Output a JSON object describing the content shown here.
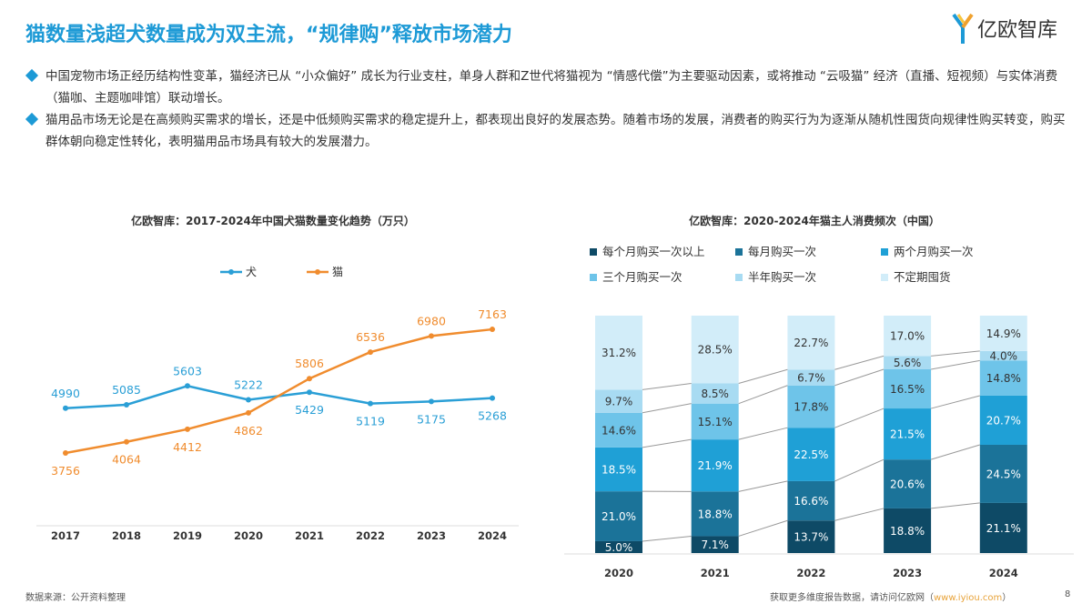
{
  "title": "猫数量浅超犬数量成为双主流，“规律购”释放市场潜力",
  "logo_text": "亿欧智库",
  "bullets": [
    "中国宠物市场正经历结构性变革，猫经济已从 “小众偏好” 成长为行业支柱，单身人群和Z世代将猫视为 “情感代偿”为主要驱动因素，或将推动 “云吸猫” 经济（直播、短视频）与实体消费（猫咖、主题咖啡馆）联动增长。",
    "猫用品市场无论是在高频购买需求的增长，还是中低频购买需求的稳定提升上，都表现出良好的发展态势。随着市场的发展，消费者的购买行为为逐渐从随机性囤货向规律性购买转变，购买群体朝向稳定性转化，表明猫用品市场具有较大的发展潜力。"
  ],
  "footer": {
    "source": "数据来源：公开资料整理",
    "more": "获取更多维度报告数据，请访问亿欧网（",
    "link": "www.iyiou.com",
    "close": "）",
    "page": "8"
  },
  "chart_data": [
    {
      "type": "line",
      "title": "亿欧智库：2017-2024年中国犬猫数量变化趋势（万只）",
      "categories": [
        "2017",
        "2018",
        "2019",
        "2020",
        "2021",
        "2022",
        "2023",
        "2024"
      ],
      "series": [
        {
          "name": "犬",
          "color": "#2a9fd6",
          "values": [
            4990,
            5085,
            5603,
            5222,
            5429,
            5119,
            5175,
            5268
          ]
        },
        {
          "name": "猫",
          "color": "#f08c2e",
          "values": [
            3756,
            4064,
            4412,
            4862,
            5806,
            6536,
            6980,
            7163
          ]
        }
      ],
      "legend": "top",
      "grid": false
    },
    {
      "type": "bar",
      "stacked": true,
      "title": "亿欧智库：2020-2024年猫主人消费频次（中国）",
      "categories": [
        "2020",
        "2021",
        "2022",
        "2023",
        "2024"
      ],
      "series": [
        {
          "name": "每个月购买一次以上",
          "color": "#0e4a66",
          "values": [
            5.0,
            7.1,
            13.7,
            18.8,
            21.1
          ]
        },
        {
          "name": "每月购买一次",
          "color": "#1b7399",
          "values": [
            21.0,
            18.8,
            16.6,
            20.6,
            24.5
          ]
        },
        {
          "name": "两个月购买一次",
          "color": "#1fa0d6",
          "values": [
            18.5,
            21.9,
            22.5,
            21.5,
            20.7
          ]
        },
        {
          "name": "三个月购买一次",
          "color": "#6ec4e9",
          "values": [
            14.6,
            15.1,
            17.8,
            16.5,
            14.8
          ]
        },
        {
          "name": "半年购买一次",
          "color": "#a8dbf2",
          "values": [
            9.7,
            8.5,
            6.7,
            5.6,
            4.0
          ]
        },
        {
          "name": "不定期囤货",
          "color": "#d2edf9",
          "values": [
            31.2,
            28.5,
            22.7,
            17.0,
            14.9
          ]
        }
      ],
      "unit": "%",
      "legend": "top",
      "grid": false
    }
  ]
}
